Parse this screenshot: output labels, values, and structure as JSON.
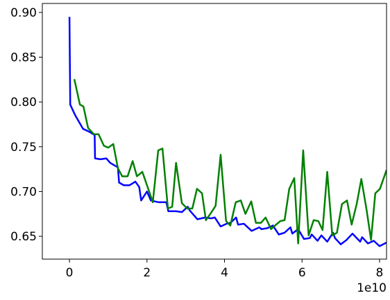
{
  "chart_data": {
    "type": "line",
    "x_offset_label": "1e10",
    "xlim": [
      -0.7,
      8.18
    ],
    "xticks": [
      0,
      2,
      4,
      6,
      8
    ],
    "ylim": [
      0.6245,
      0.91
    ],
    "yticks": [
      {
        "value": 0.65,
        "label": "0.65"
      },
      {
        "value": 0.7,
        "label": "0.70"
      },
      {
        "value": 0.75,
        "label": "0.75"
      },
      {
        "value": 0.8,
        "label": "0.80"
      },
      {
        "value": 0.85,
        "label": "0.85"
      },
      {
        "value": 0.9,
        "label": "0.90"
      }
    ],
    "grid": false,
    "series": [
      {
        "color": "#0000ff",
        "x": [
          0,
          0.02,
          0.15,
          0.35,
          0.5,
          0.65,
          0.66,
          0.8,
          0.95,
          1.05,
          1.25,
          1.28,
          1.4,
          1.55,
          1.7,
          1.8,
          1.85,
          2.0,
          2.1,
          2.3,
          2.5,
          2.55,
          2.75,
          2.9,
          3.05,
          3.1,
          3.3,
          3.5,
          3.65,
          3.75,
          3.9,
          4.05,
          4.15,
          4.3,
          4.35,
          4.5,
          4.7,
          4.9,
          4.95,
          5.1,
          5.25,
          5.4,
          5.55,
          5.7,
          5.75,
          5.9,
          6.05,
          6.2,
          6.25,
          6.4,
          6.5,
          6.65,
          6.8,
          6.85,
          7.0,
          7.15,
          7.3,
          7.5,
          7.55,
          7.7,
          7.85,
          8.0,
          8.18
        ],
        "values": [
          0.895,
          0.797,
          0.785,
          0.77,
          0.767,
          0.763,
          0.737,
          0.736,
          0.737,
          0.732,
          0.727,
          0.71,
          0.707,
          0.707,
          0.711,
          0.705,
          0.69,
          0.7,
          0.69,
          0.688,
          0.688,
          0.678,
          0.678,
          0.677,
          0.683,
          0.679,
          0.669,
          0.671,
          0.67,
          0.671,
          0.661,
          0.664,
          0.665,
          0.671,
          0.663,
          0.664,
          0.656,
          0.66,
          0.658,
          0.659,
          0.662,
          0.652,
          0.654,
          0.66,
          0.653,
          0.658,
          0.647,
          0.648,
          0.652,
          0.645,
          0.651,
          0.644,
          0.654,
          0.648,
          0.641,
          0.646,
          0.653,
          0.644,
          0.649,
          0.642,
          0.645,
          0.639,
          0.643
        ]
      },
      {
        "color": "#008000",
        "x": [
          0.125,
          0.27,
          0.36,
          0.48,
          0.63,
          0.75,
          0.89,
          1.0,
          1.13,
          1.25,
          1.36,
          1.5,
          1.63,
          1.74,
          1.88,
          2.0,
          2.15,
          2.29,
          2.4,
          2.54,
          2.65,
          2.75,
          2.9,
          3.04,
          3.17,
          3.29,
          3.42,
          3.52,
          3.65,
          3.77,
          3.9,
          4.04,
          4.15,
          4.29,
          4.42,
          4.54,
          4.69,
          4.81,
          4.94,
          5.06,
          5.2,
          5.33,
          5.44,
          5.55,
          5.67,
          5.8,
          5.9,
          6.03,
          6.17,
          6.3,
          6.42,
          6.53,
          6.65,
          6.78,
          6.9,
          7.03,
          7.16,
          7.28,
          7.41,
          7.53,
          7.66,
          7.78,
          7.89,
          8.01,
          8.18
        ],
        "values": [
          0.8255,
          0.797,
          0.795,
          0.771,
          0.764,
          0.764,
          0.751,
          0.749,
          0.753,
          0.726,
          0.717,
          0.717,
          0.734,
          0.717,
          0.722,
          0.707,
          0.688,
          0.746,
          0.748,
          0.681,
          0.683,
          0.732,
          0.687,
          0.681,
          0.681,
          0.703,
          0.698,
          0.668,
          0.676,
          0.684,
          0.741,
          0.667,
          0.662,
          0.688,
          0.69,
          0.675,
          0.689,
          0.665,
          0.665,
          0.671,
          0.658,
          0.663,
          0.667,
          0.668,
          0.703,
          0.715,
          0.642,
          0.746,
          0.651,
          0.668,
          0.667,
          0.657,
          0.722,
          0.651,
          0.654,
          0.686,
          0.69,
          0.663,
          0.686,
          0.714,
          0.681,
          0.646,
          0.698,
          0.703,
          0.724
        ]
      }
    ]
  }
}
